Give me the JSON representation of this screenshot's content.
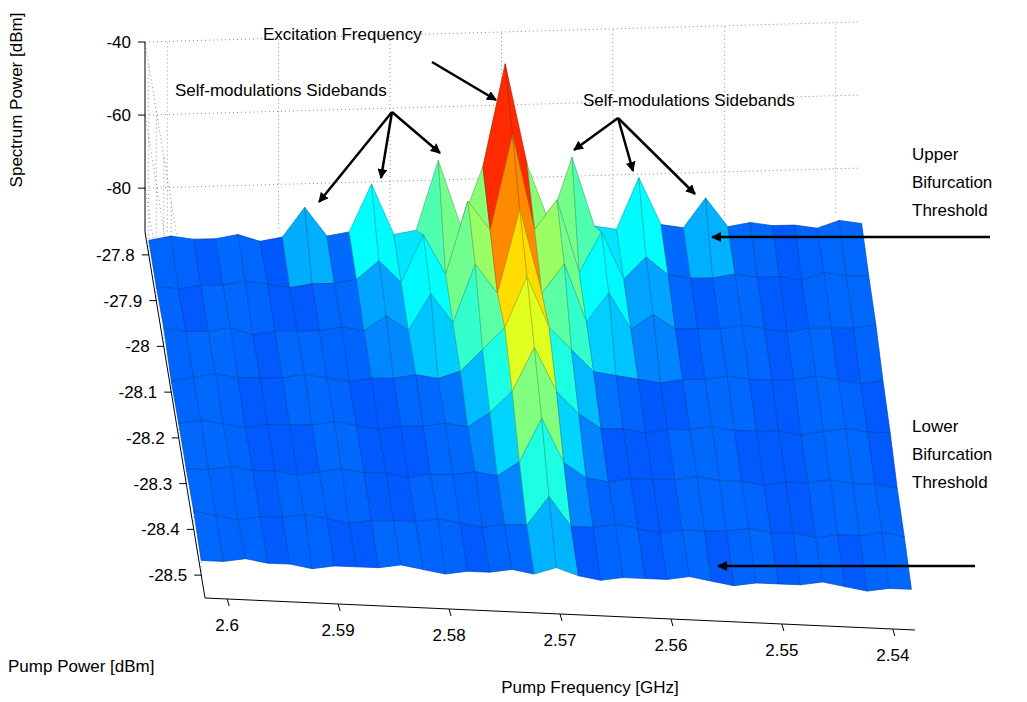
{
  "chart_data": {
    "type": "surface",
    "x_label": "Pump Frequency [GHz]",
    "y_label": "Pump Power [dBm]",
    "z_label": "Spectrum Power [dBm]",
    "x": [
      2.538,
      2.54,
      2.542,
      2.544,
      2.546,
      2.548,
      2.55,
      2.552,
      2.554,
      2.556,
      2.558,
      2.56,
      2.562,
      2.564,
      2.566,
      2.568,
      2.57,
      2.572,
      2.574,
      2.576,
      2.578,
      2.58,
      2.582,
      2.584,
      2.586,
      2.588,
      2.59,
      2.592,
      2.594,
      2.596,
      2.598,
      2.6,
      2.602
    ],
    "y": [
      -27.8,
      -27.9,
      -28,
      -28.1,
      -28.2,
      -28.3,
      -28.4,
      -28.5
    ],
    "values": [
      [
        -88,
        -87,
        -89,
        -88,
        -88,
        -87,
        -88,
        -80,
        -88,
        -87,
        -74,
        -88,
        -87,
        -68,
        -86,
        -70,
        -42,
        -70,
        -86,
        -68,
        -87,
        -88,
        -74,
        -87,
        -88,
        -80,
        -88,
        -89,
        -87,
        -88,
        -88,
        -87,
        -88
      ],
      [
        -88,
        -88,
        -87,
        -89,
        -88,
        -88,
        -87,
        -88,
        -88,
        -87,
        -82,
        -88,
        -75,
        -86,
        -66,
        -74,
        -48,
        -74,
        -66,
        -86,
        -75,
        -88,
        -82,
        -87,
        -88,
        -88,
        -89,
        -88,
        -87,
        -88,
        -88,
        -89,
        -88
      ],
      [
        -87,
        -88,
        -88,
        -88,
        -89,
        -88,
        -87,
        -88,
        -88,
        -88,
        -84,
        -88,
        -78,
        -86,
        -70,
        -78,
        -55,
        -78,
        -70,
        -86,
        -78,
        -88,
        -84,
        -88,
        -87,
        -88,
        -88,
        -88,
        -89,
        -87,
        -88,
        -88,
        -87
      ],
      [
        -88,
        -89,
        -88,
        -87,
        -88,
        -88,
        -88,
        -87,
        -88,
        -88,
        -89,
        -88,
        -87,
        -86,
        -80,
        -74,
        -60,
        -74,
        -80,
        -86,
        -88,
        -87,
        -88,
        -88,
        -89,
        -88,
        -87,
        -88,
        -88,
        -88,
        -87,
        -88,
        -89
      ],
      [
        -88,
        -88,
        -87,
        -88,
        -89,
        -88,
        -88,
        -88,
        -87,
        -88,
        -88,
        -89,
        -88,
        -88,
        -84,
        -78,
        -66,
        -78,
        -84,
        -88,
        -87,
        -88,
        -88,
        -89,
        -88,
        -87,
        -88,
        -88,
        -88,
        -89,
        -88,
        -87,
        -88
      ],
      [
        -89,
        -88,
        -88,
        -87,
        -88,
        -88,
        -89,
        -88,
        -88,
        -87,
        -88,
        -88,
        -88,
        -89,
        -88,
        -84,
        -72,
        -84,
        -88,
        -87,
        -88,
        -88,
        -89,
        -88,
        -88,
        -87,
        -88,
        -89,
        -88,
        -88,
        -87,
        -88,
        -88
      ],
      [
        -88,
        -87,
        -88,
        -88,
        -89,
        -88,
        -88,
        -87,
        -88,
        -88,
        -88,
        -89,
        -88,
        -87,
        -88,
        -88,
        -80,
        -88,
        -88,
        -89,
        -88,
        -87,
        -88,
        -88,
        -88,
        -89,
        -88,
        -87,
        -88,
        -88,
        -89,
        -88,
        -87
      ],
      [
        -88,
        -88,
        -89,
        -88,
        -87,
        -88,
        -88,
        -88,
        -89,
        -88,
        -87,
        -88,
        -88,
        -88,
        -89,
        -88,
        -86,
        -88,
        -87,
        -88,
        -88,
        -89,
        -88,
        -87,
        -88,
        -88,
        -88,
        -89,
        -88,
        -88,
        -87,
        -88,
        -88
      ]
    ],
    "xlim": [
      2.602,
      2.538
    ],
    "xticks": [
      2.6,
      2.59,
      2.58,
      2.57,
      2.56,
      2.55,
      2.54
    ],
    "ylim": [
      -28.55,
      -27.75
    ],
    "yticks": [
      -27.8,
      -27.9,
      -28,
      -28.1,
      -28.2,
      -28.3,
      -28.4,
      -28.5
    ],
    "zlim": [
      -92,
      -40
    ],
    "zticks": [
      -80,
      -60,
      -40
    ],
    "grid": true,
    "annotations": [
      "Excitation Frequency",
      "Self-modulations Sidebands",
      "Self-modulations Sidebands",
      "Upper Bifurcation Threshold",
      "Lower Bifurcation Threshold"
    ]
  }
}
